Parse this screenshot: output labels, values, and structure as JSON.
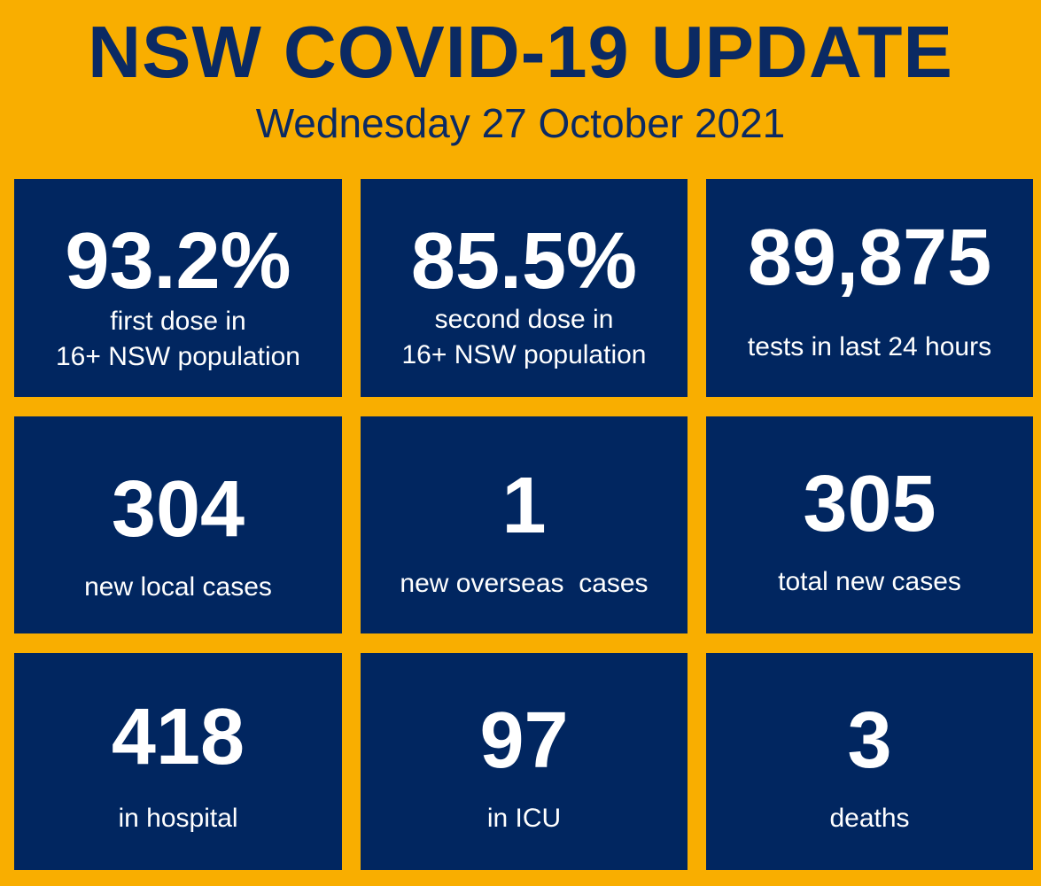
{
  "header": {
    "title": "NSW COVID-19 UPDATE",
    "date": "Wednesday 27 October 2021"
  },
  "colors": {
    "background": "#F9AE00",
    "tile": "#012660",
    "title_text": "#0B2A63",
    "tile_text": "#FFFFFF"
  },
  "tiles": [
    {
      "value": "93.2%",
      "label_line1": "first dose in",
      "label_line2": "16+ NSW population"
    },
    {
      "value": "85.5%",
      "label_line1": "second dose in",
      "label_line2": "16+ NSW population"
    },
    {
      "value": "89,875",
      "label": "tests in last 24 hours"
    },
    {
      "value": "304",
      "label": "new local cases"
    },
    {
      "value": "1",
      "label": "new overseas  cases"
    },
    {
      "value": "305",
      "label": "total new cases"
    },
    {
      "value": "418",
      "label": "in hospital"
    },
    {
      "value": "97",
      "label": "in ICU"
    },
    {
      "value": "3",
      "label": "deaths"
    }
  ]
}
